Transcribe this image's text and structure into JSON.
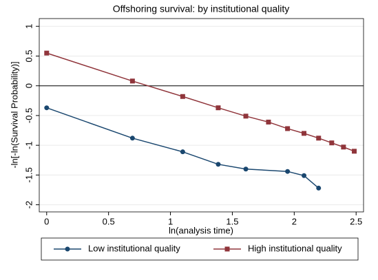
{
  "chart_data": {
    "type": "line",
    "title": "Offshoring survival: by institutional quality",
    "x_label": "ln(analysis time)",
    "y_label": "-ln[-ln(Survival Probability)]",
    "xlim": [
      -0.06,
      2.56
    ],
    "xticks": [
      0,
      0.5,
      1,
      1.5,
      2,
      2.5
    ],
    "ylim": [
      -2.12,
      1.13
    ],
    "yticks": [
      -2,
      -1.5,
      -1,
      -0.5,
      0,
      0.5,
      1
    ],
    "yline": 0,
    "grid": true,
    "legend": "bottom",
    "series": [
      {
        "name": "Low institutional quality",
        "color": "#1a476f",
        "marker": "circle",
        "x": [
          0,
          0.693,
          1.099,
          1.386,
          1.609,
          1.946,
          2.079,
          2.197
        ],
        "values": [
          -0.37,
          -0.88,
          -1.11,
          -1.32,
          -1.4,
          -1.44,
          -1.51,
          -1.72
        ]
      },
      {
        "name": "High institutional quality",
        "color": "#90353b",
        "marker": "square",
        "x": [
          0,
          0.693,
          1.099,
          1.386,
          1.609,
          1.792,
          1.946,
          2.079,
          2.197,
          2.303,
          2.398,
          2.485
        ],
        "values": [
          0.55,
          0.08,
          -0.18,
          -0.37,
          -0.51,
          -0.61,
          -0.72,
          -0.8,
          -0.88,
          -0.96,
          -1.03,
          -1.1
        ]
      }
    ]
  }
}
